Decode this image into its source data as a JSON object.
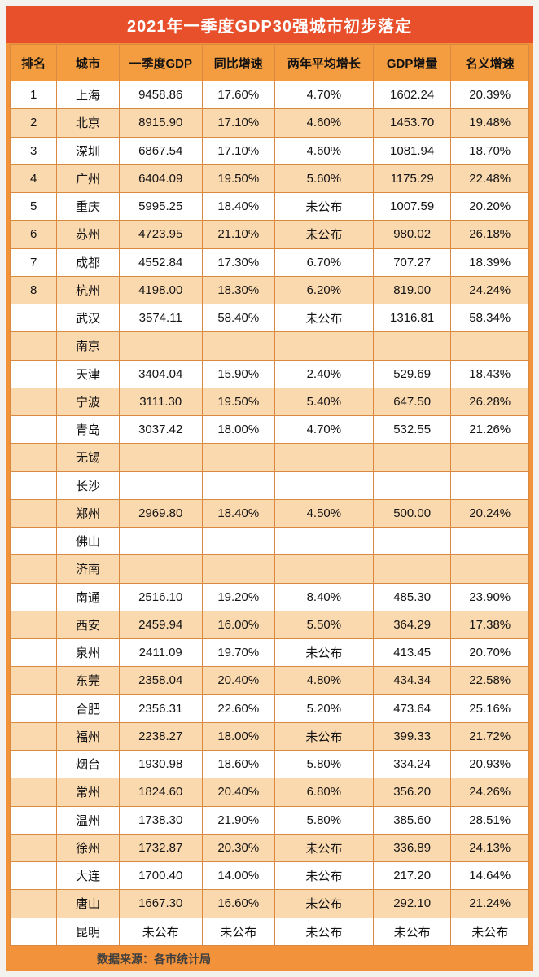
{
  "title": "2021年一季度GDP30强城市初步落定",
  "footer": {
    "source_label": "数据来源：各市统计局"
  },
  "colors": {
    "title_bg": "#e8502c",
    "title_text": "#ffffff",
    "frame_bg": "#f2923a",
    "header_bg": "#f49d40",
    "row_odd_bg": "#ffffff",
    "row_even_bg": "#fbd9af",
    "cell_border": "#d98a40"
  },
  "chart_data": {
    "type": "table",
    "title": "2021年一季度GDP30强城市初步落定",
    "columns": [
      "排名",
      "城市",
      "一季度GDP",
      "同比增速",
      "两年平均增长",
      "GDP增量",
      "名义增速"
    ],
    "rows": [
      [
        "1",
        "上海",
        "9458.86",
        "17.60%",
        "4.70%",
        "1602.24",
        "20.39%"
      ],
      [
        "2",
        "北京",
        "8915.90",
        "17.10%",
        "4.60%",
        "1453.70",
        "19.48%"
      ],
      [
        "3",
        "深圳",
        "6867.54",
        "17.10%",
        "4.60%",
        "1081.94",
        "18.70%"
      ],
      [
        "4",
        "广州",
        "6404.09",
        "19.50%",
        "5.60%",
        "1175.29",
        "22.48%"
      ],
      [
        "5",
        "重庆",
        "5995.25",
        "18.40%",
        "未公布",
        "1007.59",
        "20.20%"
      ],
      [
        "6",
        "苏州",
        "4723.95",
        "21.10%",
        "未公布",
        "980.02",
        "26.18%"
      ],
      [
        "7",
        "成都",
        "4552.84",
        "17.30%",
        "6.70%",
        "707.27",
        "18.39%"
      ],
      [
        "8",
        "杭州",
        "4198.00",
        "18.30%",
        "6.20%",
        "819.00",
        "24.24%"
      ],
      [
        "",
        "武汉",
        "3574.11",
        "58.40%",
        "未公布",
        "1316.81",
        "58.34%"
      ],
      [
        "",
        "南京",
        "",
        "",
        "",
        "",
        ""
      ],
      [
        "",
        "天津",
        "3404.04",
        "15.90%",
        "2.40%",
        "529.69",
        "18.43%"
      ],
      [
        "",
        "宁波",
        "3111.30",
        "19.50%",
        "5.40%",
        "647.50",
        "26.28%"
      ],
      [
        "",
        "青岛",
        "3037.42",
        "18.00%",
        "4.70%",
        "532.55",
        "21.26%"
      ],
      [
        "",
        "无锡",
        "",
        "",
        "",
        "",
        ""
      ],
      [
        "",
        "长沙",
        "",
        "",
        "",
        "",
        ""
      ],
      [
        "",
        "郑州",
        "2969.80",
        "18.40%",
        "4.50%",
        "500.00",
        "20.24%"
      ],
      [
        "",
        "佛山",
        "",
        "",
        "",
        "",
        ""
      ],
      [
        "",
        "济南",
        "",
        "",
        "",
        "",
        ""
      ],
      [
        "",
        "南通",
        "2516.10",
        "19.20%",
        "8.40%",
        "485.30",
        "23.90%"
      ],
      [
        "",
        "西安",
        "2459.94",
        "16.00%",
        "5.50%",
        "364.29",
        "17.38%"
      ],
      [
        "",
        "泉州",
        "2411.09",
        "19.70%",
        "未公布",
        "413.45",
        "20.70%"
      ],
      [
        "",
        "东莞",
        "2358.04",
        "20.40%",
        "4.80%",
        "434.34",
        "22.58%"
      ],
      [
        "",
        "合肥",
        "2356.31",
        "22.60%",
        "5.20%",
        "473.64",
        "25.16%"
      ],
      [
        "",
        "福州",
        "2238.27",
        "18.00%",
        "未公布",
        "399.33",
        "21.72%"
      ],
      [
        "",
        "烟台",
        "1930.98",
        "18.60%",
        "5.80%",
        "334.24",
        "20.93%"
      ],
      [
        "",
        "常州",
        "1824.60",
        "20.40%",
        "6.80%",
        "356.20",
        "24.26%"
      ],
      [
        "",
        "温州",
        "1738.30",
        "21.90%",
        "5.80%",
        "385.60",
        "28.51%"
      ],
      [
        "",
        "徐州",
        "1732.87",
        "20.30%",
        "未公布",
        "336.89",
        "24.13%"
      ],
      [
        "",
        "大连",
        "1700.40",
        "14.00%",
        "未公布",
        "217.20",
        "14.64%"
      ],
      [
        "",
        "唐山",
        "1667.30",
        "16.60%",
        "未公布",
        "292.10",
        "21.24%"
      ],
      [
        "",
        "昆明",
        "未公布",
        "未公布",
        "未公布",
        "未公布",
        "未公布"
      ]
    ],
    "source": "数据来源：各市统计局"
  }
}
